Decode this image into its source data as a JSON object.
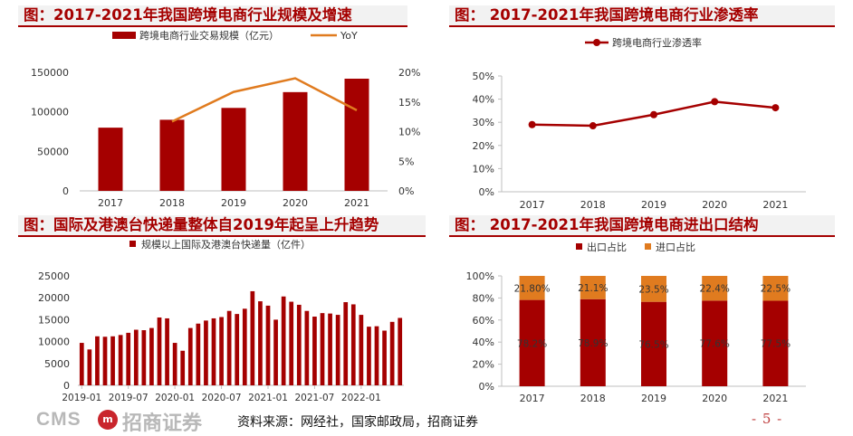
{
  "chart_data": [
    {
      "type": "bar",
      "title": "图：2017-2021年我国跨境电商行业规模及增速",
      "categories": [
        "2017",
        "2018",
        "2019",
        "2020",
        "2021"
      ],
      "series": [
        {
          "name": "跨境电商行业交易规模（亿元）",
          "type": "bar",
          "axis": "left",
          "color": "#a50000",
          "values": [
            80000,
            90000,
            105000,
            125000,
            142000
          ]
        },
        {
          "name": "YoY",
          "type": "line",
          "axis": "right",
          "color": "#e07b1f",
          "values": [
            null,
            11.7,
            16.7,
            19.0,
            13.6
          ]
        }
      ],
      "ylim": [
        0,
        150000
      ],
      "yticks": [
        "0",
        "50000",
        "100000",
        "150000"
      ],
      "y2lim": [
        0,
        20
      ],
      "y2ticks": [
        "0%",
        "5%",
        "10%",
        "15%",
        "20%"
      ],
      "legend": "top"
    },
    {
      "type": "line",
      "title": "图：  2017-2021年我国跨境电商行业渗透率",
      "categories": [
        "2017",
        "2018",
        "2019",
        "2020",
        "2021"
      ],
      "series": [
        {
          "name": "跨境电商行业渗透率",
          "color": "#a50000",
          "values": [
            29.0,
            28.5,
            33.3,
            38.9,
            36.3
          ]
        }
      ],
      "ylim": [
        0,
        50
      ],
      "yticks": [
        "0%",
        "10%",
        "20%",
        "30%",
        "40%",
        "50%"
      ],
      "legend": "top"
    },
    {
      "type": "bar",
      "title": "图：国际及港澳台快递量整体自2019年起呈上升趋势",
      "series": [
        {
          "name": "规模以上国际及港澳台快递量（亿件）",
          "color": "#a50000",
          "values": [
            9700,
            8200,
            11200,
            11100,
            11200,
            11500,
            12000,
            12700,
            12600,
            13100,
            15500,
            15300,
            9700,
            7900,
            13100,
            14100,
            14800,
            15300,
            15600,
            17000,
            16300,
            17500,
            21500,
            19200,
            18200,
            15000,
            20300,
            19100,
            18400,
            17000,
            15700,
            16500,
            16400,
            16100,
            19000,
            18500,
            16100,
            13400,
            13500,
            12500,
            14500,
            15400
          ]
        }
      ],
      "x_start": "2019-01",
      "xticks": [
        "2019-01",
        "2019-07",
        "2020-01",
        "2020-07",
        "2021-01",
        "2021-07",
        "2022-01"
      ],
      "ylim": [
        0,
        25000
      ],
      "yticks": [
        "0",
        "5000",
        "10000",
        "15000",
        "20000",
        "25000"
      ],
      "legend": "top"
    },
    {
      "type": "bar",
      "stacked": true,
      "title": "图：  2017-2021年我国跨境电商进出口结构",
      "categories": [
        "2017",
        "2018",
        "2019",
        "2020",
        "2021"
      ],
      "series": [
        {
          "name": "出口占比",
          "color": "#a50000",
          "values": [
            78.2,
            78.9,
            76.5,
            77.6,
            77.5
          ],
          "labels": [
            "78.2%",
            "78.9%",
            "76.5%",
            "77.6%",
            "77.5%"
          ]
        },
        {
          "name": "进口占比",
          "color": "#e07b1f",
          "values": [
            21.8,
            21.1,
            23.5,
            22.4,
            22.5
          ],
          "labels": [
            "21.80%",
            "21.1%",
            "23.5%",
            "22.4%",
            "22.5%"
          ]
        }
      ],
      "ylim": [
        0,
        100
      ],
      "yticks": [
        "0%",
        "20%",
        "40%",
        "60%",
        "80%",
        "100%"
      ],
      "legend": "top"
    }
  ],
  "footer": {
    "logo_text": "CMS",
    "logo_badge": "m",
    "logo_cn": "招商证券",
    "source": "资料来源：网经社，国家邮政局，招商证券",
    "page": "- 5 -"
  }
}
